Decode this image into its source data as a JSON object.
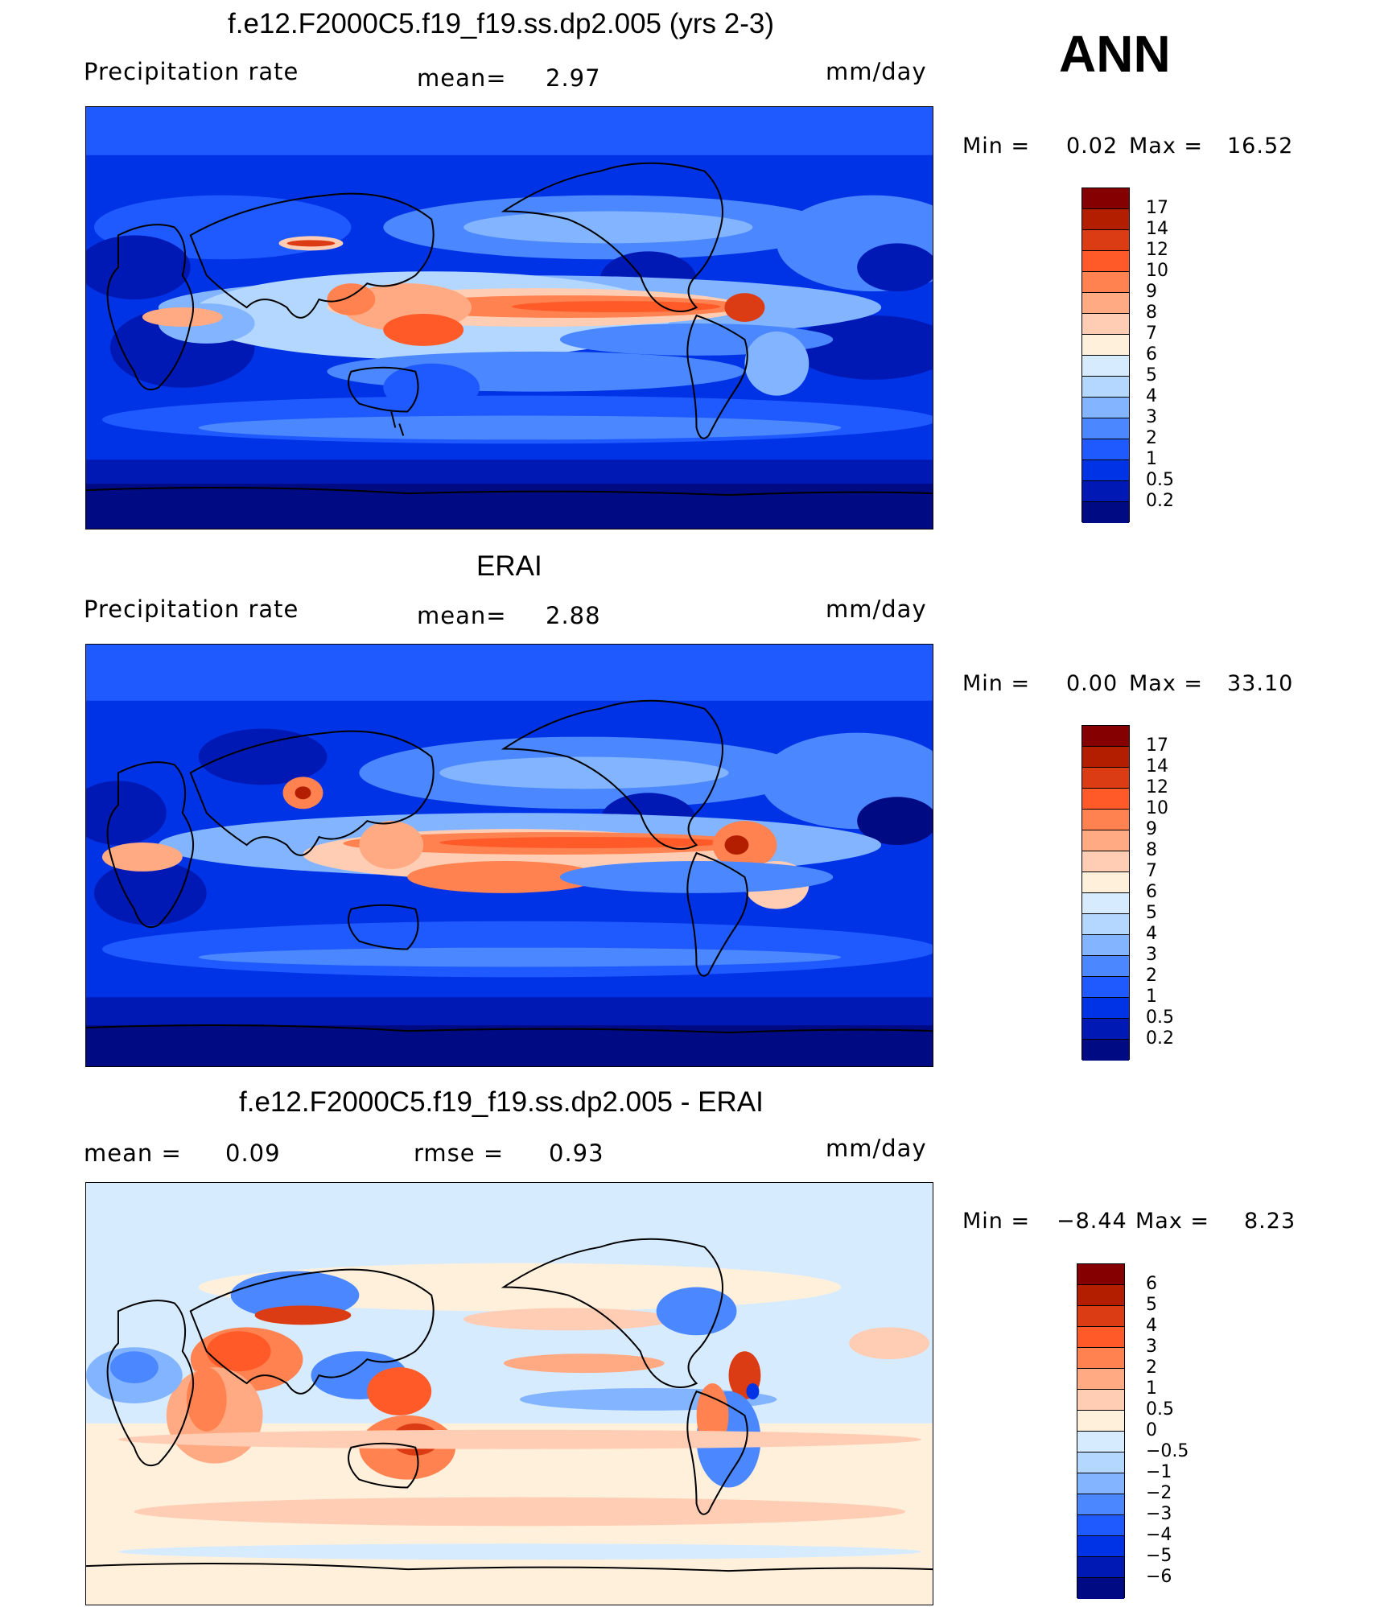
{
  "season": "ANN",
  "units": "mm/day",
  "panels": [
    {
      "title": "f.e12.F2000C5.f19_f19.ss.dp2.005 (yrs 2-3)",
      "left_label": "Precipitation  rate",
      "stat_label": "mean=",
      "stat_value": "2.97",
      "min_label": "Min  =",
      "min_value": "0.02",
      "max_label": "Max  =",
      "max_value": "16.52",
      "colorbar_labels": [
        "17",
        "14",
        "12",
        "10",
        "9",
        "8",
        "7",
        "6",
        "5",
        "4",
        "3",
        "2",
        "1",
        "0.5",
        "0.2"
      ],
      "colorbar_colors": [
        "#850000",
        "#b31e00",
        "#dc3c14",
        "#ff5a28",
        "#ff8250",
        "#ffaa82",
        "#ffcdb4",
        "#fff0dc",
        "#d7ebff",
        "#b4d7ff",
        "#82b4ff",
        "#4b87ff",
        "#1e5aff",
        "#0032e6",
        "#0019b4",
        "#000a82"
      ]
    },
    {
      "title": "ERAI",
      "left_label": "Precipitation  rate",
      "stat_label": "mean=",
      "stat_value": "2.88",
      "min_label": "Min  =",
      "min_value": "0.00",
      "max_label": "Max  =",
      "max_value": "33.10",
      "colorbar_labels": [
        "17",
        "14",
        "12",
        "10",
        "9",
        "8",
        "7",
        "6",
        "5",
        "4",
        "3",
        "2",
        "1",
        "0.5",
        "0.2"
      ],
      "colorbar_colors": [
        "#850000",
        "#b31e00",
        "#dc3c14",
        "#ff5a28",
        "#ff8250",
        "#ffaa82",
        "#ffcdb4",
        "#fff0dc",
        "#d7ebff",
        "#b4d7ff",
        "#82b4ff",
        "#4b87ff",
        "#1e5aff",
        "#0032e6",
        "#0019b4",
        "#000a82"
      ]
    },
    {
      "title": "f.e12.F2000C5.f19_f19.ss.dp2.005 - ERAI",
      "left_label": "mean  =",
      "left_value": "0.09",
      "stat_label": "rmse  =",
      "stat_value": "0.93",
      "min_label": "Min  =",
      "min_value": "−8.44",
      "max_label": "Max  =",
      "max_value": "8.23",
      "colorbar_labels": [
        "6",
        "5",
        "4",
        "3",
        "2",
        "1",
        "0.5",
        "0",
        "−0.5",
        "−1",
        "−2",
        "−3",
        "−4",
        "−5",
        "−6"
      ],
      "colorbar_colors": [
        "#850000",
        "#b31e00",
        "#dc3c14",
        "#ff5a28",
        "#ff8250",
        "#ffaa82",
        "#ffcdb4",
        "#fff0dc",
        "#d7ebff",
        "#b4d7ff",
        "#82b4ff",
        "#4b87ff",
        "#1e5aff",
        "#0032e6",
        "#0019b4",
        "#000a82"
      ]
    }
  ]
}
